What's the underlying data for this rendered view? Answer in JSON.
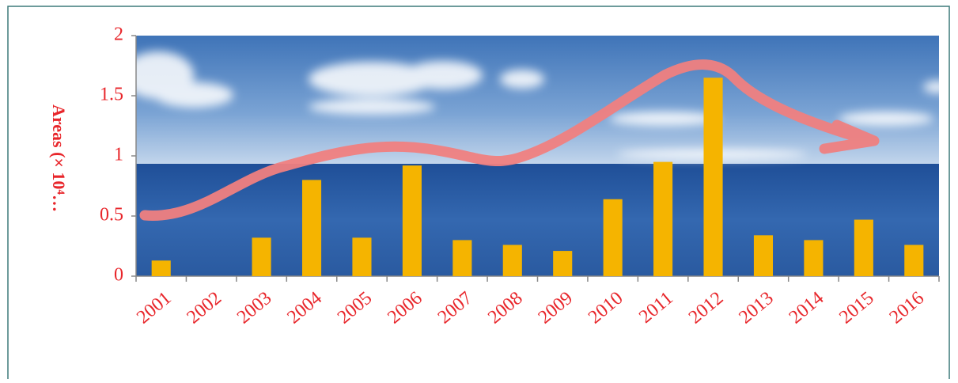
{
  "chart_data": {
    "type": "bar",
    "y_label": "Areas (× 10⁴…",
    "categories": [
      "2001",
      "2002",
      "2003",
      "2004",
      "2005",
      "2006",
      "2007",
      "2008",
      "2009",
      "2010",
      "2011",
      "2012",
      "2013",
      "2014",
      "2015",
      "2016"
    ],
    "values": [
      0.13,
      0,
      0.32,
      0.8,
      0.32,
      0.92,
      0.3,
      0.26,
      0.21,
      0.64,
      0.95,
      1.65,
      0.34,
      0.3,
      0.47,
      0.26
    ],
    "color": "#f5b400",
    "ylim": [
      0,
      2
    ],
    "yticks": [
      0,
      0.5,
      1,
      1.5,
      2
    ],
    "grid": false
  }
}
